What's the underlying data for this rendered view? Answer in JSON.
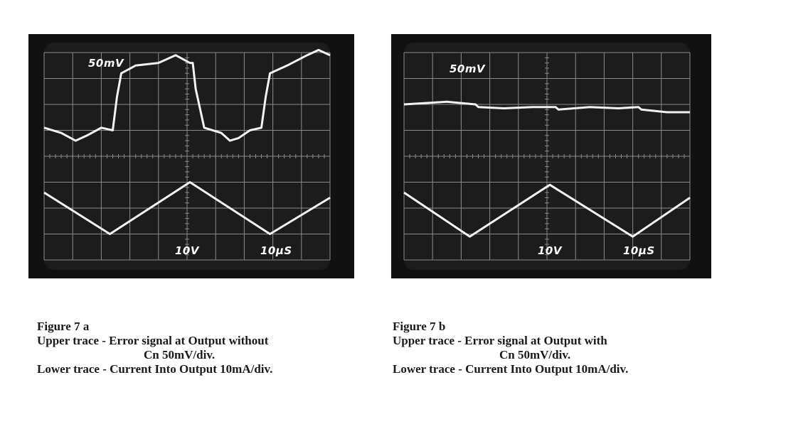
{
  "chart_data": [
    {
      "type": "line",
      "figure_label": "Figure 7 a",
      "scope_labels": {
        "upper_scale": "50mV",
        "lower_scale": "10V",
        "time_scale": "10µS"
      },
      "grid": true,
      "divisions": {
        "x": 10,
        "y": 8
      },
      "series": [
        {
          "x": [
            0,
            0.6,
            1.1,
            1.5,
            2.0,
            2.4,
            2.55,
            2.7,
            3.2,
            4.0,
            4.6,
            5.1,
            5.2,
            5.3,
            5.6,
            6.2,
            6.5,
            6.8,
            7.2,
            7.6,
            7.75,
            7.9,
            8.5,
            9.2,
            9.6,
            10
          ],
          "y": [
            1.1,
            0.9,
            0.6,
            0.8,
            1.1,
            1.0,
            2.3,
            3.2,
            3.5,
            3.6,
            3.9,
            3.6,
            3.6,
            2.6,
            1.1,
            0.9,
            0.6,
            0.7,
            1.0,
            1.1,
            2.3,
            3.2,
            3.5,
            3.9,
            4.1,
            3.9
          ]
        },
        {
          "x": [
            0,
            2.3,
            5.1,
            7.9,
            10
          ],
          "y": [
            -1.4,
            -3.0,
            -1.0,
            -3.0,
            -1.6
          ]
        }
      ]
    },
    {
      "type": "line",
      "figure_label": "Figure 7 b",
      "scope_labels": {
        "upper_scale": "50mV",
        "lower_scale": "10V",
        "time_scale": "10µS"
      },
      "grid": true,
      "divisions": {
        "x": 10,
        "y": 8
      },
      "series": [
        {
          "x": [
            0,
            1.5,
            2.5,
            2.6,
            3.5,
            4.5,
            5.3,
            5.4,
            6.5,
            7.5,
            8.2,
            8.3,
            9.2,
            10
          ],
          "y": [
            2.0,
            2.1,
            2.0,
            1.9,
            1.85,
            1.9,
            1.9,
            1.8,
            1.9,
            1.85,
            1.9,
            1.8,
            1.7,
            1.7
          ]
        },
        {
          "x": [
            0,
            2.3,
            5.1,
            8.0,
            10
          ],
          "y": [
            -1.4,
            -3.1,
            -1.1,
            -3.1,
            -1.6
          ]
        }
      ]
    }
  ],
  "captions": {
    "a": {
      "title": "Figure 7 a",
      "upper_line1": "Upper trace - Error signal at Output without",
      "upper_line2": "Cn 50mV/div.",
      "lower": "Lower trace - Current Into Output 10mA/div."
    },
    "b": {
      "title": "Figure 7 b",
      "upper_line1": "Upper trace - Error signal at Output with",
      "upper_line2": "Cn 50mV/div.",
      "lower": "Lower trace - Current Into Output 10mA/div."
    }
  },
  "colors": {
    "screen": "#1c1c1c",
    "bezel": "#0a0a0a",
    "grid": "#8a8a8a",
    "trace": "#f2f2f2"
  }
}
